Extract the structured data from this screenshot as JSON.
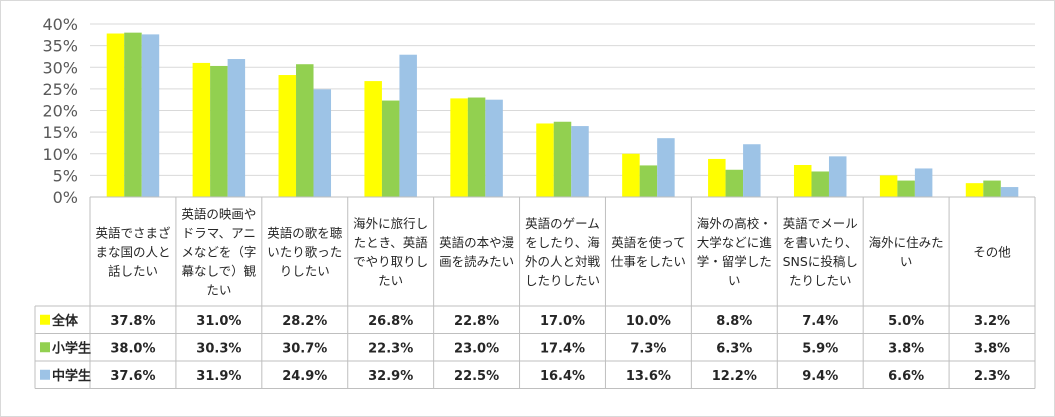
{
  "chart_data": {
    "type": "bar",
    "categories": [
      [
        "英語でさまざ",
        "まな国の人と",
        "話したい"
      ],
      [
        "英語の映画や",
        "ドラマ、アニ",
        "メなどを（字",
        "幕なしで）観",
        "たい"
      ],
      [
        "英語の歌を聴",
        "いたり歌った",
        "りしたい"
      ],
      [
        "海外に旅行し",
        "たとき、英語",
        "でやり取りし",
        "たい"
      ],
      [
        "英語の本や漫",
        "画を読みたい"
      ],
      [
        "英語のゲーム",
        "をしたり、海",
        "外の人と対戦",
        "したりしたい"
      ],
      [
        "英語を使って",
        "仕事をしたい"
      ],
      [
        "海外の高校・",
        "大学などに進",
        "学・留学した",
        "い"
      ],
      [
        "英語でメール",
        "を書いたり、",
        "SNSに投稿し",
        "たりしたい"
      ],
      [
        "海外に住みた",
        "い"
      ],
      [
        "その他"
      ]
    ],
    "series": [
      {
        "name": "全体",
        "color": "#ffff00",
        "values": [
          37.8,
          31.0,
          28.2,
          26.8,
          22.8,
          17.0,
          10.0,
          8.8,
          7.4,
          5.0,
          3.2
        ],
        "labels": [
          "37.8%",
          "31.0%",
          "28.2%",
          "26.8%",
          "22.8%",
          "17.0%",
          "10.0%",
          "8.8%",
          "7.4%",
          "5.0%",
          "3.2%"
        ]
      },
      {
        "name": "小学生",
        "color": "#92d050",
        "values": [
          38.0,
          30.3,
          30.7,
          22.3,
          23.0,
          17.4,
          7.3,
          6.3,
          5.9,
          3.8,
          3.8
        ],
        "labels": [
          "38.0%",
          "30.3%",
          "30.7%",
          "22.3%",
          "23.0%",
          "17.4%",
          "7.3%",
          "6.3%",
          "5.9%",
          "3.8%",
          "3.8%"
        ]
      },
      {
        "name": "中学生",
        "color": "#9dc3e6",
        "values": [
          37.6,
          31.9,
          24.9,
          32.9,
          22.5,
          16.4,
          13.6,
          12.2,
          9.4,
          6.6,
          2.3
        ],
        "labels": [
          "37.6%",
          "31.9%",
          "24.9%",
          "32.9%",
          "22.5%",
          "16.4%",
          "13.6%",
          "12.2%",
          "9.4%",
          "6.6%",
          "2.3%"
        ]
      }
    ],
    "yticks": [
      "0%",
      "5%",
      "10%",
      "15%",
      "20%",
      "25%",
      "30%",
      "35%",
      "40%"
    ],
    "ylim": [
      0,
      40
    ],
    "grid": true,
    "legend": "data-table"
  }
}
